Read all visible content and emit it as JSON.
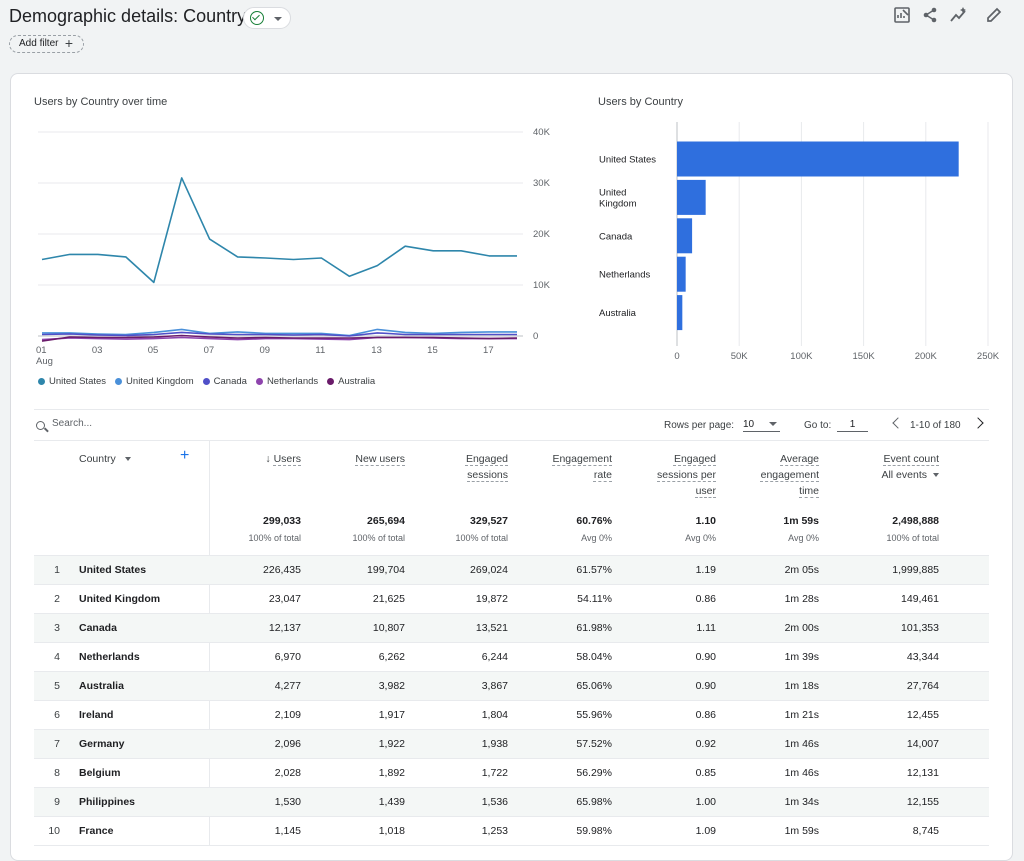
{
  "header": {
    "title": "Demographic details: Country",
    "add_filter_label": "Add filter"
  },
  "colors": {
    "accent": "#1a73e8",
    "bar": "#2f6fde",
    "line_united_states": "#2e86ab",
    "line_united_kingdom": "#4a90d9",
    "line_canada": "#5050c8",
    "line_netherlands": "#8e44ad",
    "line_australia": "#6a1b6a",
    "status_ok": "#188038"
  },
  "line_section_title": "Users by Country over time",
  "bar_section_title": "Users by Country",
  "chart_data": [
    {
      "type": "line",
      "x": [
        "01 Aug",
        "02",
        "03",
        "04",
        "05",
        "06",
        "07",
        "08",
        "09",
        "10",
        "11",
        "12",
        "13",
        "14",
        "15",
        "16",
        "17",
        "18"
      ],
      "x_tick_labels": [
        {
          "label": "01",
          "sub": "Aug",
          "index": 0
        },
        {
          "label": "03",
          "sub": "",
          "index": 2
        },
        {
          "label": "05",
          "sub": "",
          "index": 4
        },
        {
          "label": "07",
          "sub": "",
          "index": 6
        },
        {
          "label": "09",
          "sub": "",
          "index": 8
        },
        {
          "label": "11",
          "sub": "",
          "index": 10
        },
        {
          "label": "13",
          "sub": "",
          "index": 12
        },
        {
          "label": "15",
          "sub": "",
          "index": 14
        },
        {
          "label": "17",
          "sub": "",
          "index": 16
        }
      ],
      "y_ticks": [
        "0",
        "10K",
        "20K",
        "30K",
        "40K"
      ],
      "ylim": [
        0,
        40000
      ],
      "grid": true,
      "legend_position": "bottom",
      "series": [
        {
          "name": "United States",
          "color": "#2e86ab",
          "values": [
            15000,
            16000,
            16000,
            15500,
            10500,
            31000,
            19000,
            15500,
            15300,
            15000,
            15300,
            11700,
            13800,
            17600,
            16700,
            16700,
            15700,
            15700
          ]
        },
        {
          "name": "United Kingdom",
          "color": "#4a90d9",
          "values": [
            600,
            600,
            400,
            300,
            700,
            1300,
            500,
            800,
            500,
            500,
            500,
            100,
            1300,
            700,
            500,
            700,
            800,
            800
          ]
        },
        {
          "name": "Canada",
          "color": "#5050c8",
          "values": [
            300,
            400,
            200,
            100,
            300,
            700,
            400,
            300,
            300,
            200,
            300,
            0,
            600,
            300,
            300,
            300,
            300,
            300
          ]
        },
        {
          "name": "Netherlands",
          "color": "#8e44ad",
          "values": [
            -700,
            -400,
            -500,
            -600,
            -500,
            -300,
            -500,
            -700,
            -500,
            -500,
            -600,
            -700,
            -300,
            -300,
            -400,
            -500,
            -500,
            -500
          ]
        },
        {
          "name": "Australia",
          "color": "#6a1b6a",
          "values": [
            -1000,
            -200,
            -300,
            -300,
            -200,
            100,
            -200,
            -400,
            -300,
            -400,
            -400,
            -400,
            -300,
            -300,
            -300,
            -400,
            -500,
            -400
          ]
        }
      ]
    },
    {
      "type": "bar",
      "orientation": "horizontal",
      "categories": [
        "United States",
        "United Kingdom",
        "Canada",
        "Netherlands",
        "Australia"
      ],
      "category_labels": [
        [
          "United States"
        ],
        [
          "United",
          "Kingdom"
        ],
        [
          "Canada"
        ],
        [
          "Netherlands"
        ],
        [
          "Australia"
        ]
      ],
      "values": [
        226435,
        23047,
        12137,
        6970,
        4277
      ],
      "x_ticks": [
        "0",
        "50K",
        "100K",
        "150K",
        "200K",
        "250K"
      ],
      "xlim": [
        0,
        250000
      ],
      "grid": true,
      "color": "#2f6fde"
    }
  ],
  "toolbar": {
    "search_placeholder": "Search...",
    "rows_per_page_label": "Rows per page:",
    "rows_per_page_value": "10",
    "goto_label": "Go to:",
    "goto_value": "1",
    "page_range": "1-10 of 180"
  },
  "table": {
    "dimension_header": "Country",
    "columns": [
      {
        "key": "users",
        "lines": [
          "Users"
        ],
        "sorted_desc": true,
        "total": "299,033",
        "total_sub": "100% of total"
      },
      {
        "key": "new_users",
        "lines": [
          "New users"
        ],
        "total": "265,694",
        "total_sub": "100% of total"
      },
      {
        "key": "engaged_sessions",
        "lines": [
          "Engaged",
          "sessions"
        ],
        "total": "329,527",
        "total_sub": "100% of total"
      },
      {
        "key": "engagement_rate",
        "lines": [
          "Engagement",
          "rate"
        ],
        "total": "60.76%",
        "total_sub": "Avg 0%"
      },
      {
        "key": "engaged_sessions_per_user",
        "lines": [
          "Engaged",
          "sessions per",
          "user"
        ],
        "total": "1.10",
        "total_sub": "Avg 0%"
      },
      {
        "key": "avg_engagement_time",
        "lines": [
          "Average",
          "engagement",
          "time"
        ],
        "total": "1m 59s",
        "total_sub": "Avg 0%"
      },
      {
        "key": "event_count",
        "lines": [
          "Event count"
        ],
        "selector": "All events",
        "total": "2,498,888",
        "total_sub": "100% of total"
      }
    ],
    "rows": [
      {
        "rank": "1",
        "country": "United States",
        "values": [
          "226,435",
          "199,704",
          "269,024",
          "61.57%",
          "1.19",
          "2m 05s",
          "1,999,885"
        ]
      },
      {
        "rank": "2",
        "country": "United Kingdom",
        "values": [
          "23,047",
          "21,625",
          "19,872",
          "54.11%",
          "0.86",
          "1m 28s",
          "149,461"
        ]
      },
      {
        "rank": "3",
        "country": "Canada",
        "values": [
          "12,137",
          "10,807",
          "13,521",
          "61.98%",
          "1.11",
          "2m 00s",
          "101,353"
        ]
      },
      {
        "rank": "4",
        "country": "Netherlands",
        "values": [
          "6,970",
          "6,262",
          "6,244",
          "58.04%",
          "0.90",
          "1m 39s",
          "43,344"
        ]
      },
      {
        "rank": "5",
        "country": "Australia",
        "values": [
          "4,277",
          "3,982",
          "3,867",
          "65.06%",
          "0.90",
          "1m 18s",
          "27,764"
        ]
      },
      {
        "rank": "6",
        "country": "Ireland",
        "values": [
          "2,109",
          "1,917",
          "1,804",
          "55.96%",
          "0.86",
          "1m 21s",
          "12,455"
        ]
      },
      {
        "rank": "7",
        "country": "Germany",
        "values": [
          "2,096",
          "1,922",
          "1,938",
          "57.52%",
          "0.92",
          "1m 46s",
          "14,007"
        ]
      },
      {
        "rank": "8",
        "country": "Belgium",
        "values": [
          "2,028",
          "1,892",
          "1,722",
          "56.29%",
          "0.85",
          "1m 46s",
          "12,131"
        ]
      },
      {
        "rank": "9",
        "country": "Philippines",
        "values": [
          "1,530",
          "1,439",
          "1,536",
          "65.98%",
          "1.00",
          "1m 34s",
          "12,155"
        ]
      },
      {
        "rank": "10",
        "country": "France",
        "values": [
          "1,145",
          "1,018",
          "1,253",
          "59.98%",
          "1.09",
          "1m 59s",
          "8,745"
        ]
      }
    ]
  }
}
